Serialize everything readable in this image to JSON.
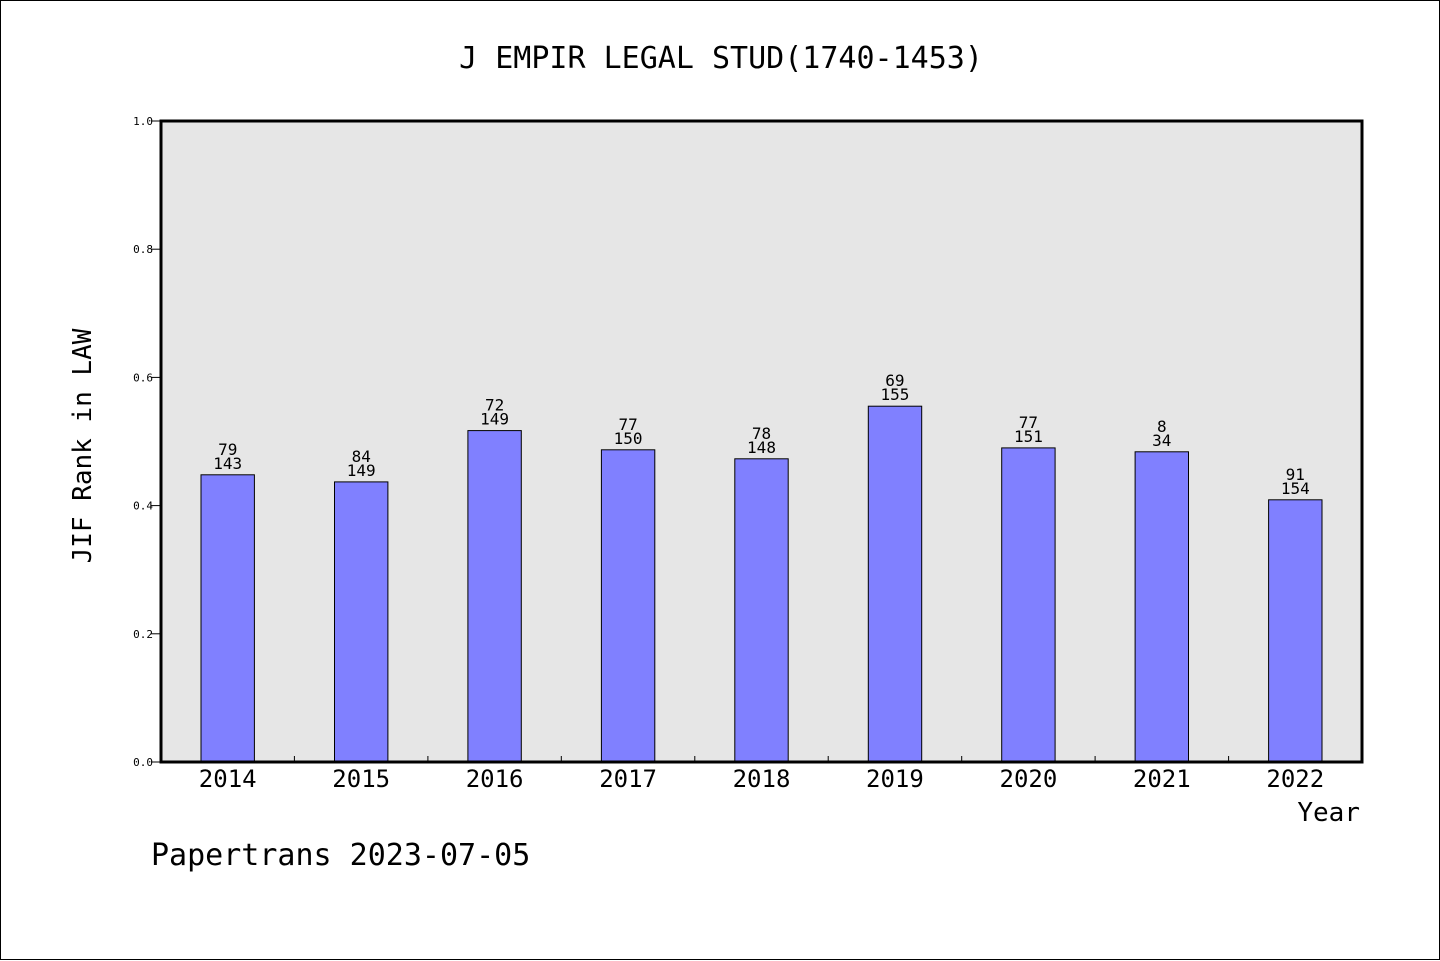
{
  "chart_data": {
    "type": "bar",
    "title": "J EMPIR LEGAL STUD(1740-1453)",
    "xlabel": "Year",
    "ylabel": "JIF Rank in LAW",
    "categories": [
      "2014",
      "2015",
      "2016",
      "2017",
      "2018",
      "2019",
      "2020",
      "2021",
      "2022"
    ],
    "values": [
      0.448,
      0.437,
      0.517,
      0.487,
      0.473,
      0.555,
      0.49,
      0.484,
      0.409
    ],
    "rank_labels": [
      "79",
      "84",
      "72",
      "77",
      "78",
      "69",
      "77",
      "8",
      "91"
    ],
    "total_labels": [
      "143",
      "149",
      "149",
      "150",
      "148",
      "155",
      "151",
      "34",
      "154"
    ],
    "ylim": [
      0,
      1.0
    ],
    "yticks": [
      "0.0",
      "0.2",
      "0.4",
      "0.6",
      "0.8",
      "1.0"
    ],
    "bar_color": "#8080ff",
    "plot_background": "#e6e6e6",
    "grid": false,
    "legend": "none"
  },
  "footer": "Papertrans 2023-07-05"
}
